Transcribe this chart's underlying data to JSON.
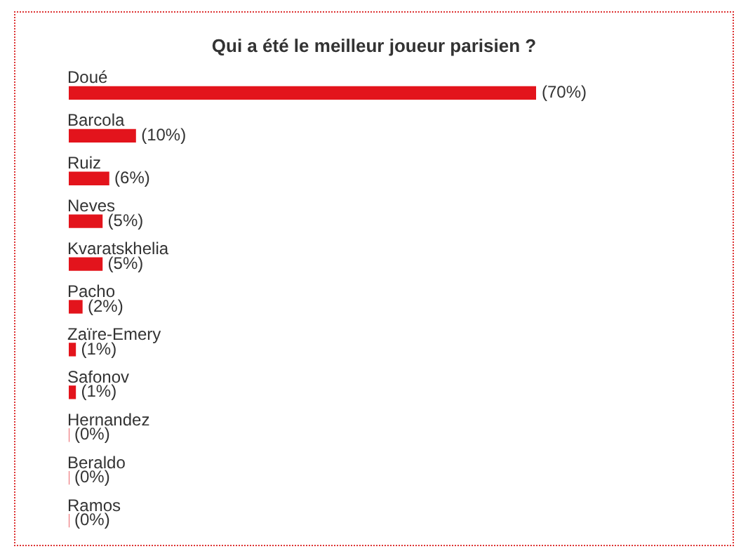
{
  "chart_data": {
    "type": "bar",
    "orientation": "horizontal",
    "title": "Qui a été le meilleur joueur parisien ?",
    "categories": [
      "Doué",
      "Barcola",
      "Ruiz",
      "Neves",
      "Kvaratskhelia",
      "Pacho",
      "Zaïre-Emery",
      "Safonov",
      "Hernandez",
      "Beraldo",
      "Ramos"
    ],
    "values": [
      70,
      10,
      6,
      5,
      5,
      2,
      1,
      1,
      0,
      0,
      0
    ],
    "value_labels": [
      "(70%)",
      "(10%)",
      "(6%)",
      "(5%)",
      "(5%)",
      "(2%)",
      "(1%)",
      "(1%)",
      "(0%)",
      "(0%)",
      "(0%)"
    ],
    "color": "#e3141c",
    "legend": false,
    "tick_labels": false
  }
}
